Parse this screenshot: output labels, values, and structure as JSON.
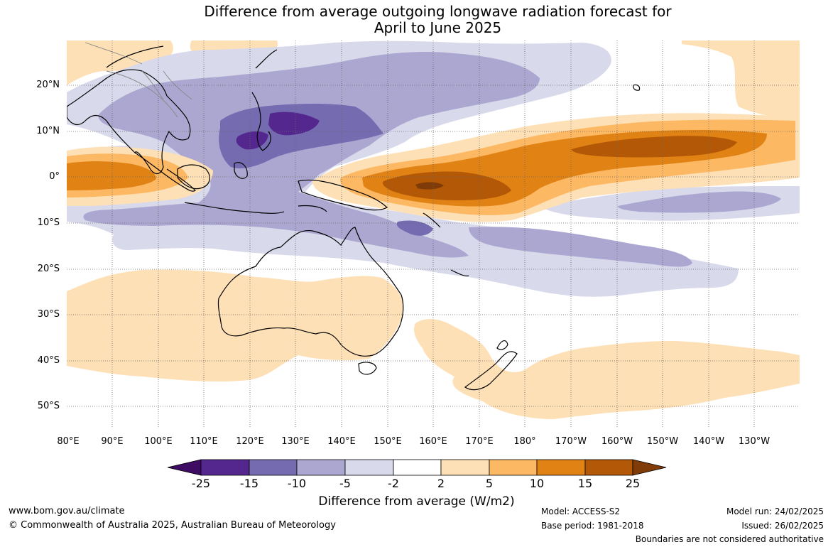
{
  "title_line1": "Difference from average outgoing longwave radiation forecast for",
  "title_line2": "April to June 2025",
  "lat_labels": [
    "20°N",
    "10°N",
    "0°",
    "10°S",
    "20°S",
    "30°S",
    "40°S",
    "50°S"
  ],
  "lon_labels": [
    "80°E",
    "90°E",
    "100°E",
    "110°E",
    "120°E",
    "130°E",
    "140°E",
    "150°E",
    "160°E",
    "170°E",
    "180°",
    "170°W",
    "160°W",
    "150°W",
    "140°W",
    "130°W"
  ],
  "colorbar": {
    "ticks": [
      "-25",
      "-15",
      "-10",
      "-5",
      "-2",
      "2",
      "5",
      "10",
      "15",
      "25"
    ],
    "colors": [
      "#3f0c64",
      "#54278f",
      "#756bb1",
      "#aca7d1",
      "#d9d9ec",
      "#ffffff",
      "#fee0b6",
      "#fdb863",
      "#e08214",
      "#b35806",
      "#7f3b08"
    ],
    "title": "Difference from average (W/m2)"
  },
  "footer": {
    "url": "www.bom.gov.au/climate",
    "copyright": "© Commonwealth of Australia 2025, Australian Bureau of Meteorology",
    "model": "Model: ACCESS-S2",
    "base_period": "Base period: 1981-2018",
    "model_run": "Model run: 24/02/2025",
    "issued": "Issued: 26/02/2025",
    "disclaimer": "Boundaries are not considered authoritative"
  }
}
